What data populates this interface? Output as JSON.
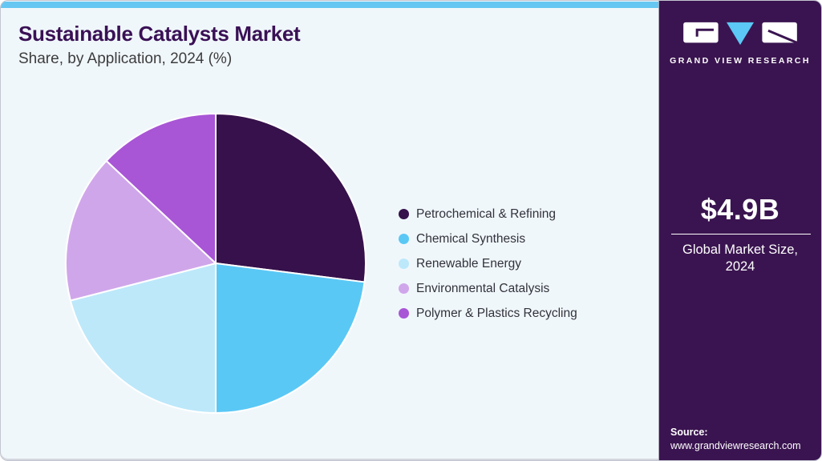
{
  "header": {
    "title": "Sustainable Catalysts Market",
    "subtitle": "Share, by Application, 2024 (%)"
  },
  "chart_data": {
    "type": "pie",
    "title": "Sustainable Catalysts Market Share, by Application, 2024 (%)",
    "units": "%",
    "start_angle_deg": 0,
    "direction": "clockwise",
    "legend_position": "right",
    "series": [
      {
        "name": "Petrochemical & Refining",
        "value": 27,
        "color": "#36114B"
      },
      {
        "name": "Chemical Synthesis",
        "value": 23,
        "color": "#5AC8F5"
      },
      {
        "name": "Renewable Energy",
        "value": 21,
        "color": "#BCE8FA"
      },
      {
        "name": "Environmental Catalysis",
        "value": 16,
        "color": "#D0A6EA"
      },
      {
        "name": "Polymer & Plastics Recycling",
        "value": 13,
        "color": "#A855D6"
      }
    ]
  },
  "sidebar": {
    "brand": "GRAND VIEW RESEARCH",
    "market_size_value": "$4.9B",
    "market_size_label": "Global Market Size, 2024",
    "source_label": "Source:",
    "source_url": "www.grandviewresearch.com",
    "logo_icons": [
      "gvr-g-block",
      "gvr-v-triangle",
      "gvr-r-block"
    ]
  },
  "theme": {
    "main_background": "#F0F7FB",
    "topbar_blue": "#66C8F2",
    "title_purple": "#3A1155",
    "subtitle_gray": "#3C3C3C",
    "sidebar_purple": "#3A1450",
    "legend_text": "#32323C",
    "slice_stroke": "#FFFFFF"
  }
}
